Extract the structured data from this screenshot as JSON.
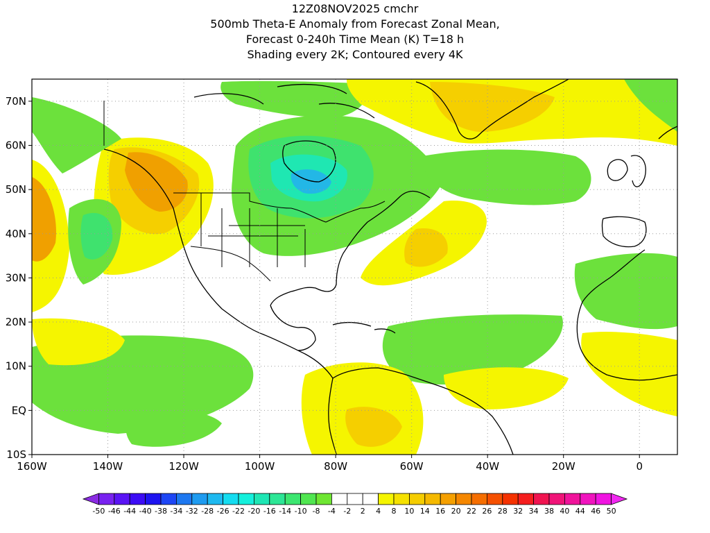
{
  "header": {
    "lines": [
      "12Z08NOV2025 cmchr",
      "500mb Theta-E Anomaly from Forecast Zonal Mean,",
      "Forecast 0-240h Time Mean (K) T=18 h",
      "Shading every 2K; Contoured every 4K"
    ]
  },
  "map": {
    "lon_range": [
      -160,
      10
    ],
    "lat_range": [
      -10,
      75
    ],
    "lat_ticks": [
      {
        "v": 70,
        "label": "70N"
      },
      {
        "v": 60,
        "label": "60N"
      },
      {
        "v": 50,
        "label": "50N"
      },
      {
        "v": 40,
        "label": "40N"
      },
      {
        "v": 30,
        "label": "30N"
      },
      {
        "v": 20,
        "label": "20N"
      },
      {
        "v": 10,
        "label": "10N"
      },
      {
        "v": 0,
        "label": "EQ"
      },
      {
        "v": -10,
        "label": "10S"
      }
    ],
    "lon_ticks": [
      {
        "v": -160,
        "label": "160W"
      },
      {
        "v": -140,
        "label": "140W"
      },
      {
        "v": -120,
        "label": "120W"
      },
      {
        "v": -100,
        "label": "100W"
      },
      {
        "v": -80,
        "label": "80W"
      },
      {
        "v": -60,
        "label": "60W"
      },
      {
        "v": -40,
        "label": "40W"
      },
      {
        "v": -20,
        "label": "20W"
      },
      {
        "v": 0,
        "label": "0"
      }
    ],
    "colors": {
      "pos_weak": "#f5f500",
      "pos_mod": "#f5cf00",
      "pos_strong": "#f0a000",
      "pos_max": "#e98a1a",
      "neg_weak": "#6ce13c",
      "neg_mod": "#3fe26e",
      "neg_strong": "#1fe7b2",
      "neg_max": "#23b7e6",
      "coast": "#000000"
    }
  },
  "colorbar": {
    "labels": [
      "-50",
      "-46",
      "-44",
      "-40",
      "-38",
      "-34",
      "-32",
      "-28",
      "-26",
      "-22",
      "-20",
      "-16",
      "-14",
      "-10",
      "-8",
      "-4",
      "-2",
      "2",
      "4",
      "8",
      "10",
      "14",
      "16",
      "20",
      "22",
      "26",
      "28",
      "32",
      "34",
      "38",
      "40",
      "44",
      "46",
      "50"
    ],
    "colors": [
      "#8a2be2",
      "#7822f0",
      "#5a14f5",
      "#3c0cf5",
      "#1e14f0",
      "#1e46f5",
      "#1e78f0",
      "#1e9bf0",
      "#1eb9f0",
      "#14dcf0",
      "#14f0dc",
      "#1ee6b4",
      "#2de696",
      "#3ce670",
      "#50e650",
      "#6ee632",
      "#ffffff",
      "#ffffff",
      "#ffffff",
      "#f5f500",
      "#f5e100",
      "#f5cd00",
      "#f5b900",
      "#f5a000",
      "#f58700",
      "#f56e00",
      "#f55000",
      "#f53200",
      "#f51e1e",
      "#f01450",
      "#f01478",
      "#f0149b",
      "#f014be",
      "#f014e1",
      "#f028f0"
    ]
  }
}
